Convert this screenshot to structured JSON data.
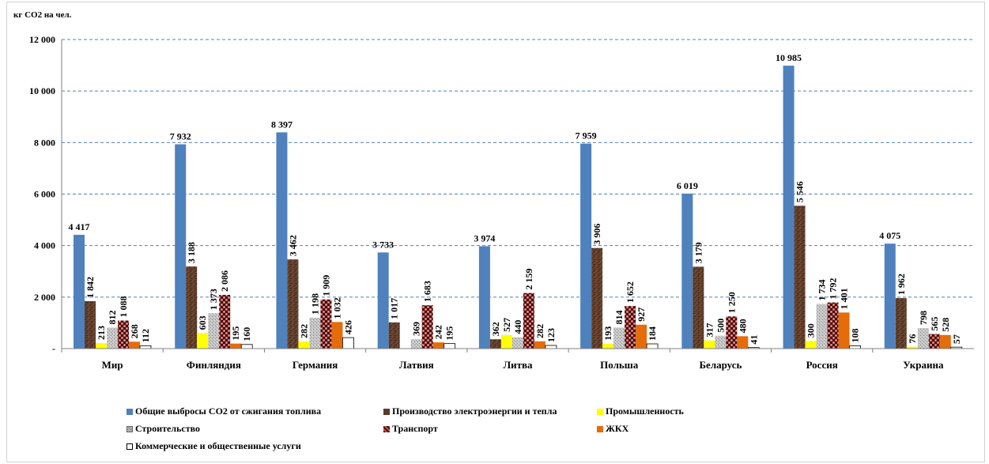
{
  "chart_data": {
    "type": "bar",
    "ylabel": "кг СО2 на чел.",
    "ylim": [
      0,
      12000
    ],
    "y_ticks": [
      "-",
      "2 000",
      "4 000",
      "6 000",
      "8 000",
      "10 000",
      "12 000"
    ],
    "y_tick_values": [
      0,
      2000,
      4000,
      6000,
      8000,
      10000,
      12000
    ],
    "grid": true,
    "legend_position": "bottom",
    "categories": [
      "Мир",
      "Финляндия",
      "Германия",
      "Латвия",
      "Литва",
      "Польша",
      "Беларусь",
      "Россия",
      "Украина"
    ],
    "series": [
      {
        "name": "Общие выбросы СО2 от сжигания топлива",
        "color": "#4f81bd",
        "pattern": "solid",
        "values": [
          4417,
          7932,
          8397,
          3733,
          3974,
          7959,
          6019,
          10985,
          4075
        ],
        "labels": [
          "4 417",
          "7 932",
          "8 397",
          "3 733",
          "3 974",
          "7 959",
          "6 019",
          "10 985",
          "4 075"
        ]
      },
      {
        "name": "Производство электроэнергии и тепла",
        "color": "#5b3a29",
        "pattern": "marble-brown",
        "values": [
          1842,
          3188,
          3462,
          1017,
          362,
          3906,
          3179,
          5546,
          1962
        ],
        "labels": [
          "1 842",
          "3 188",
          "3 462",
          "1 017",
          "362",
          "3 906",
          "3 179",
          "5 546",
          "1 962"
        ]
      },
      {
        "name": "Промышленность",
        "color": "#ffff00",
        "pattern": "solid",
        "values": [
          213,
          603,
          282,
          0,
          527,
          193,
          317,
          300,
          76
        ],
        "labels": [
          "213",
          "603",
          "282",
          "",
          "527",
          "193",
          "317",
          "300",
          "76"
        ]
      },
      {
        "name": "Строительство",
        "color": "#b8b8b8",
        "pattern": "grey-texture",
        "values": [
          812,
          1373,
          1198,
          369,
          440,
          814,
          500,
          1734,
          798
        ],
        "labels": [
          "812",
          "1 373",
          "1 198",
          "369",
          "440",
          "814",
          "500",
          "1 734",
          "798"
        ]
      },
      {
        "name": "Транспорт",
        "color": "#c0392b",
        "pattern": "red-check",
        "values": [
          1088,
          2086,
          1909,
          1683,
          2159,
          1652,
          1250,
          1792,
          565
        ],
        "labels": [
          "1 088",
          "2 086",
          "1 909",
          "1 683",
          "2 159",
          "1 652",
          "1 250",
          "1 792",
          "565"
        ]
      },
      {
        "name": "ЖКХ",
        "color": "#e46c0a",
        "pattern": "solid",
        "values": [
          268,
          195,
          1032,
          242,
          282,
          927,
          480,
          1401,
          528
        ],
        "labels": [
          "268",
          "195",
          "1 032",
          "242",
          "282",
          "927",
          "480",
          "1 401",
          "528"
        ]
      },
      {
        "name": "Коммерческие и общественные услуги",
        "color": "#ffffff",
        "pattern": "outline",
        "values": [
          112,
          160,
          426,
          195,
          123,
          184,
          41,
          108,
          57
        ],
        "labels": [
          "112",
          "160",
          "426",
          "195",
          "123",
          "184",
          "41",
          "108",
          "57"
        ]
      }
    ]
  }
}
